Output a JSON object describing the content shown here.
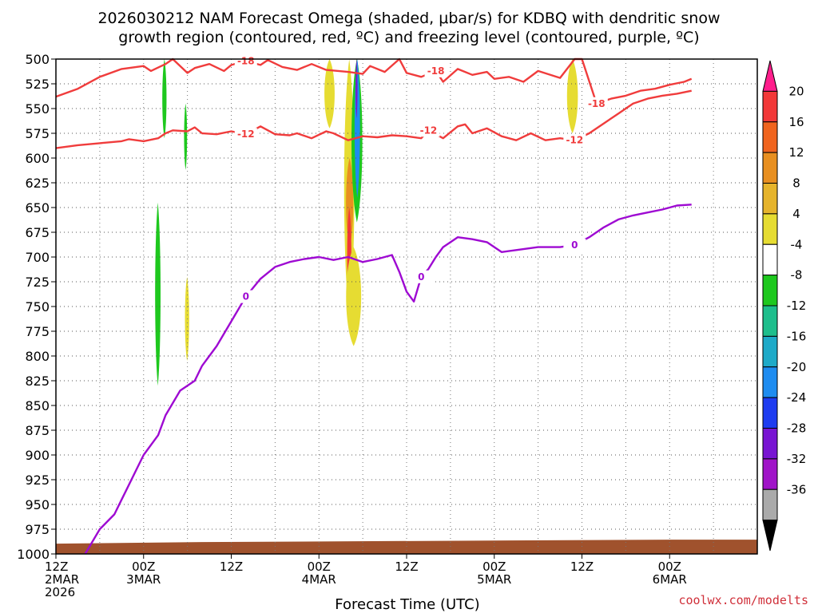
{
  "title_line1": "2026030212 NAM Forecast Omega (shaded, μbar/s) for KDBQ with dendritic snow",
  "title_line2": "growth region (contoured, red, ºC) and freezing level (contoured, purple, ºC)",
  "xlabel": "Forecast Time (UTC)",
  "credit": "coolwx.com/modelts",
  "chart_data": {
    "type": "time-height cross section",
    "y_axis": {
      "quantity": "pressure (mb)",
      "ticks": [
        500,
        525,
        550,
        575,
        600,
        625,
        650,
        675,
        700,
        725,
        750,
        775,
        800,
        825,
        850,
        875,
        900,
        925,
        950,
        975,
        1000
      ],
      "range": [
        500,
        1000
      ],
      "inverted": true
    },
    "x_axis": {
      "quantity": "forecast hour",
      "range": [
        0,
        96
      ],
      "ticks": [
        {
          "hour": 0,
          "lines": [
            "12Z",
            "2MAR",
            "2026"
          ]
        },
        {
          "hour": 12,
          "lines": [
            "00Z",
            "3MAR"
          ]
        },
        {
          "hour": 24,
          "lines": [
            "12Z"
          ]
        },
        {
          "hour": 36,
          "lines": [
            "00Z",
            "4MAR"
          ]
        },
        {
          "hour": 48,
          "lines": [
            "12Z"
          ]
        },
        {
          "hour": 60,
          "lines": [
            "00Z",
            "5MAR"
          ]
        },
        {
          "hour": 72,
          "lines": [
            "12Z"
          ]
        },
        {
          "hour": 84,
          "lines": [
            "00Z",
            "6MAR"
          ]
        }
      ],
      "grid": true
    },
    "colorbar": {
      "levels": [
        20,
        16,
        12,
        8,
        4,
        -4,
        -8,
        -12,
        -16,
        -20,
        -24,
        -28,
        -32,
        -36
      ],
      "colors": [
        "#ff1e8c",
        "#f23838",
        "#f0641e",
        "#e88f20",
        "#e6b42c",
        "#e6dc32",
        "#ffffff",
        "#1ec81e",
        "#1ebe8c",
        "#1eaac8",
        "#1e8cf0",
        "#1e3cf0",
        "#7814d2",
        "#a014c8",
        "#aaaaaa",
        "#000000"
      ]
    },
    "contours": [
      {
        "label": "-18",
        "color": "#f03c3c",
        "points": [
          [
            0,
            538
          ],
          [
            3,
            530
          ],
          [
            6,
            518
          ],
          [
            9,
            510
          ],
          [
            12,
            507
          ],
          [
            13,
            512
          ],
          [
            15,
            505
          ],
          [
            16,
            498
          ],
          [
            18,
            514
          ],
          [
            19,
            509
          ],
          [
            21,
            505
          ],
          [
            23,
            512
          ],
          [
            24,
            506
          ],
          [
            26,
            502
          ],
          [
            28,
            506
          ],
          [
            29,
            501
          ],
          [
            31,
            508
          ],
          [
            33,
            511
          ],
          [
            35,
            505
          ],
          [
            37,
            511
          ],
          [
            40,
            513
          ],
          [
            42,
            515
          ],
          [
            43,
            507
          ],
          [
            45,
            513
          ],
          [
            47,
            498
          ],
          [
            48,
            514
          ],
          [
            50,
            518
          ],
          [
            52,
            512
          ],
          [
            53,
            523
          ],
          [
            55,
            510
          ],
          [
            57,
            516
          ],
          [
            59,
            513
          ],
          [
            60,
            520
          ],
          [
            62,
            518
          ],
          [
            64,
            523
          ],
          [
            66,
            512
          ],
          [
            69,
            519
          ],
          [
            71,
            500
          ],
          [
            72,
            490
          ],
          [
            74,
            545
          ],
          [
            76,
            540
          ],
          [
            78,
            537
          ],
          [
            80,
            532
          ],
          [
            82,
            530
          ],
          [
            84,
            526
          ],
          [
            86,
            523
          ],
          [
            87,
            520
          ]
        ]
      },
      {
        "label": "-12",
        "color": "#f03c3c",
        "points": [
          [
            0,
            590
          ],
          [
            3,
            587
          ],
          [
            6,
            585
          ],
          [
            9,
            583
          ],
          [
            10,
            581
          ],
          [
            12,
            583
          ],
          [
            14,
            580
          ],
          [
            15,
            575
          ],
          [
            16,
            572
          ],
          [
            18,
            573
          ],
          [
            19,
            569
          ],
          [
            20,
            575
          ],
          [
            22,
            576
          ],
          [
            24,
            573
          ],
          [
            26,
            576
          ],
          [
            28,
            568
          ],
          [
            30,
            576
          ],
          [
            32,
            577
          ],
          [
            33,
            575
          ],
          [
            35,
            580
          ],
          [
            37,
            573
          ],
          [
            38,
            575
          ],
          [
            40,
            582
          ],
          [
            42,
            578
          ],
          [
            44,
            579
          ],
          [
            46,
            577
          ],
          [
            48,
            578
          ],
          [
            50,
            580
          ],
          [
            51,
            572
          ],
          [
            53,
            580
          ],
          [
            55,
            568
          ],
          [
            56,
            566
          ],
          [
            57,
            575
          ],
          [
            59,
            570
          ],
          [
            61,
            578
          ],
          [
            63,
            582
          ],
          [
            65,
            575
          ],
          [
            67,
            582
          ],
          [
            69,
            580
          ],
          [
            71,
            582
          ],
          [
            73,
            575
          ],
          [
            75,
            565
          ],
          [
            77,
            555
          ],
          [
            79,
            545
          ],
          [
            81,
            540
          ],
          [
            83,
            537
          ],
          [
            85,
            535
          ],
          [
            87,
            532
          ]
        ]
      },
      {
        "label": "0",
        "color": "#9e0ad2",
        "points": [
          [
            4,
            1000
          ],
          [
            6,
            975
          ],
          [
            8,
            960
          ],
          [
            9,
            945
          ],
          [
            10,
            930
          ],
          [
            11,
            915
          ],
          [
            12,
            900
          ],
          [
            14,
            880
          ],
          [
            15,
            860
          ],
          [
            17,
            835
          ],
          [
            19,
            825
          ],
          [
            20,
            810
          ],
          [
            22,
            790
          ],
          [
            24,
            765
          ],
          [
            26,
            740
          ],
          [
            28,
            722
          ],
          [
            30,
            710
          ],
          [
            32,
            705
          ],
          [
            34,
            702
          ],
          [
            36,
            700
          ],
          [
            38,
            703
          ],
          [
            40,
            700
          ],
          [
            42,
            705
          ],
          [
            44,
            702
          ],
          [
            46,
            698
          ],
          [
            47,
            715
          ],
          [
            48,
            735
          ],
          [
            49,
            745
          ],
          [
            50,
            720
          ],
          [
            51,
            712
          ],
          [
            52,
            700
          ],
          [
            53,
            690
          ],
          [
            55,
            680
          ],
          [
            57,
            682
          ],
          [
            59,
            685
          ],
          [
            61,
            695
          ],
          [
            63,
            693
          ],
          [
            66,
            690
          ],
          [
            69,
            690
          ],
          [
            71,
            688
          ],
          [
            73,
            680
          ],
          [
            75,
            670
          ],
          [
            77,
            662
          ],
          [
            79,
            658
          ],
          [
            81,
            655
          ],
          [
            83,
            652
          ],
          [
            85,
            648
          ],
          [
            87,
            647
          ]
        ]
      }
    ],
    "shaded_regions": [
      {
        "color": "#1ec81e",
        "omega_band": [
          -8,
          -4
        ],
        "hour_range": [
          14.5,
          15.2
        ],
        "pressure_range": [
          500,
          580
        ]
      },
      {
        "color": "#1ec81e",
        "omega_band": [
          -8,
          -4
        ],
        "hour_range": [
          17.5,
          18.0
        ],
        "pressure_range": [
          545,
          612
        ]
      },
      {
        "color": "#1ec81e",
        "omega_band": [
          -8,
          -4
        ],
        "hour_range": [
          13.5,
          14.4
        ],
        "pressure_range": [
          645,
          830
        ]
      },
      {
        "color": "#e6dc32",
        "omega_band": [
          4,
          8
        ],
        "hour_range": [
          17.6,
          18.3
        ],
        "pressure_range": [
          720,
          805
        ]
      },
      {
        "color": "#e6dc32",
        "omega_band": [
          4,
          8
        ],
        "hour_range": [
          36.6,
          38.3
        ],
        "pressure_range": [
          490,
          570
        ]
      },
      {
        "color": "#e6dc32",
        "omega_band": [
          4,
          8
        ],
        "hour_range": [
          39.3,
          41.0
        ],
        "pressure_range": [
          490,
          760
        ]
      },
      {
        "color": "#e88f20",
        "omega_band": [
          12,
          16
        ],
        "hour_range": [
          39.6,
          40.8
        ],
        "pressure_range": [
          600,
          690
        ]
      },
      {
        "color": "#f23838",
        "omega_band": [
          16,
          20
        ],
        "hour_range": [
          39.8,
          40.5
        ],
        "pressure_range": [
          650,
          745
        ]
      },
      {
        "color": "#e6dc32",
        "omega_band": [
          4,
          8
        ],
        "hour_range": [
          39.5,
          42.0
        ],
        "pressure_range": [
          690,
          790
        ]
      },
      {
        "color": "#1ec81e",
        "omega_band": [
          -8,
          -4
        ],
        "hour_range": [
          40.3,
          42.1
        ],
        "pressure_range": [
          490,
          665
        ]
      },
      {
        "color": "#1e8cf0",
        "omega_band": [
          -20,
          -16
        ],
        "hour_range": [
          40.8,
          41.7
        ],
        "pressure_range": [
          490,
          640
        ]
      },
      {
        "color": "#7814d2",
        "omega_band": [
          -28,
          -24
        ],
        "hour_range": [
          41.0,
          41.3
        ],
        "pressure_range": [
          490,
          560
        ]
      },
      {
        "color": "#e6dc32",
        "omega_band": [
          4,
          8
        ],
        "hour_range": [
          69.8,
          71.6
        ],
        "pressure_range": [
          490,
          575
        ]
      }
    ],
    "terrain_fill": {
      "color": "#a0522d",
      "pressure_top": 988
    }
  }
}
